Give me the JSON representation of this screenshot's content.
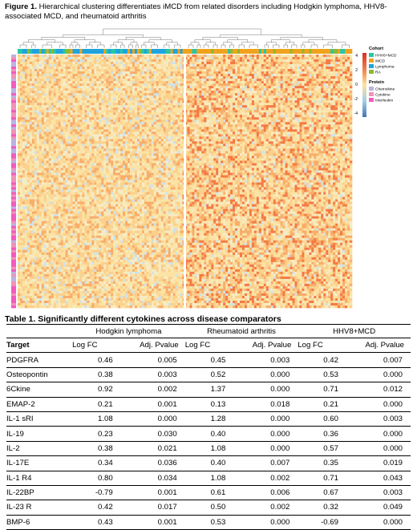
{
  "figure": {
    "label": "Figure 1.",
    "caption": "Hierarchical clustering differentiates iMCD from related disorders including Hodgkin lymphoma, HHV8-associated MCD, and rheumatoid arthritis",
    "legend": {
      "cohort_title": "Cohort",
      "cohort_items": [
        {
          "label": "HHV8+MCD",
          "color": "#26c6a6"
        },
        {
          "label": "iMCD",
          "color": "#f0a21c"
        },
        {
          "label": "Lymphoma",
          "color": "#1fa3dc"
        },
        {
          "label": "RA",
          "color": "#8db832"
        }
      ],
      "scale_ticks": [
        "4",
        "2",
        "0",
        "-2",
        "-4"
      ],
      "protein_title": "Protein",
      "protein_items": [
        {
          "label": "Chemokine",
          "color": "#b9b3e2"
        },
        {
          "label": "Cytokine",
          "color": "#ef93b6"
        },
        {
          "label": "Interleukin",
          "color": "#f25ac0"
        }
      ],
      "heat_colors": {
        "high": "#d73027",
        "mid": "#fbe3a4",
        "low": "#4575b4"
      }
    }
  },
  "table": {
    "caption": "Table 1. Significantly different cytokines across disease comparators",
    "groups": [
      "Hodgkin lymphoma",
      "Rheumatoid arthritis",
      "HHV8+MCD"
    ],
    "target_label": "Target",
    "logfc_label": "Log FC",
    "pval_label": "Adj. Pvalue",
    "rows": [
      [
        "PDGFRA",
        "0.46",
        "0.005",
        "0.45",
        "0.003",
        "0.42",
        "0.007"
      ],
      [
        "Osteopontin",
        "0.38",
        "0.003",
        "0.52",
        "0.000",
        "0.53",
        "0.000"
      ],
      [
        "6Ckine",
        "0.92",
        "0.002",
        "1.37",
        "0.000",
        "0.71",
        "0.012"
      ],
      [
        "EMAP-2",
        "0.21",
        "0.001",
        "0.13",
        "0.018",
        "0.21",
        "0.000"
      ],
      [
        "IL-1 sRI",
        "1.08",
        "0.000",
        "1.28",
        "0.000",
        "0.60",
        "0.003"
      ],
      [
        "IL-19",
        "0.23",
        "0.030",
        "0.40",
        "0.000",
        "0.36",
        "0.000"
      ],
      [
        "IL-2",
        "0.38",
        "0.021",
        "1.08",
        "0.000",
        "0.57",
        "0.000"
      ],
      [
        "IL-17E",
        "0.34",
        "0.036",
        "0.40",
        "0.007",
        "0.35",
        "0.019"
      ],
      [
        "IL-1 R4",
        "0.80",
        "0.034",
        "1.08",
        "0.002",
        "0.71",
        "0.043"
      ],
      [
        "IL-22BP",
        "-0.79",
        "0.001",
        "0.61",
        "0.006",
        "0.67",
        "0.003"
      ],
      [
        "IL-23 R",
        "0.42",
        "0.017",
        "0.50",
        "0.002",
        "0.32",
        "0.049"
      ],
      [
        "BMP-6",
        "0.43",
        "0.001",
        "0.53",
        "0.000",
        "-0.69",
        "0.000"
      ]
    ]
  }
}
